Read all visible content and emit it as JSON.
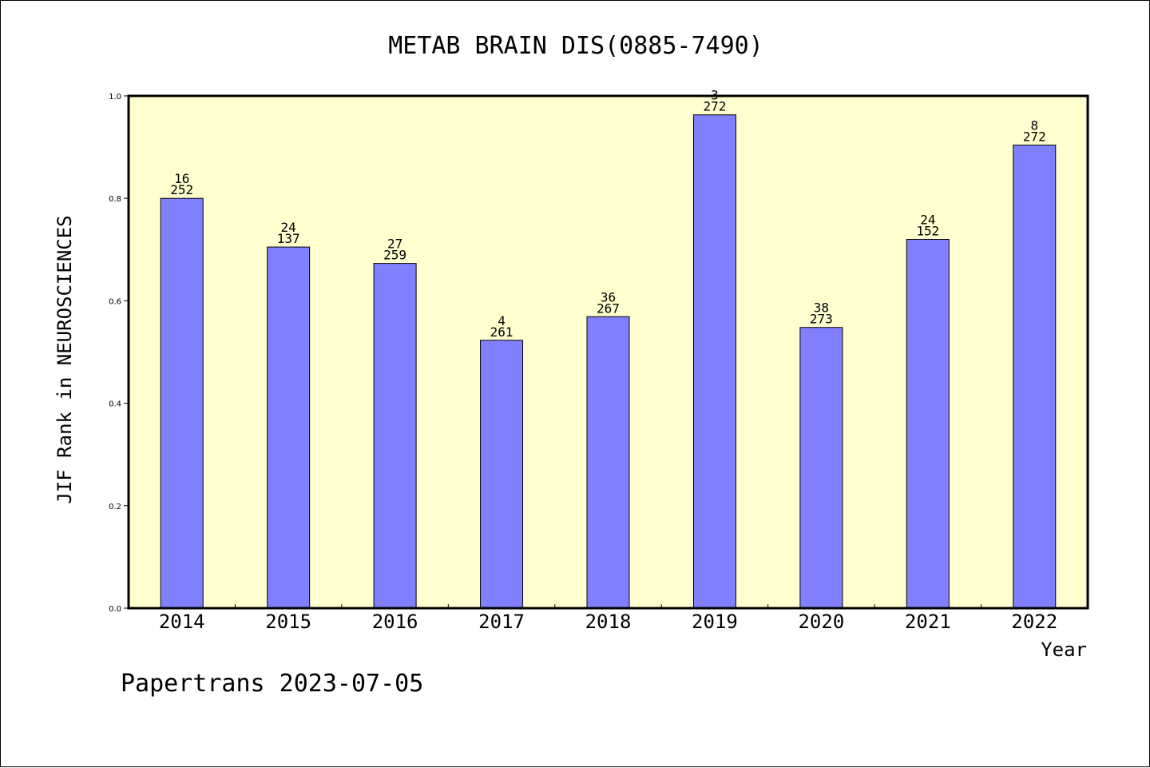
{
  "chart_data": {
    "type": "bar",
    "title": "METAB BRAIN DIS(0885-7490)",
    "xlabel": "Year",
    "ylabel": "JIF Rank in NEUROSCIENCES",
    "ylim": [
      0,
      1.0
    ],
    "yticks": [
      "0.0",
      "0.2",
      "0.4",
      "0.6",
      "0.8",
      "1.0"
    ],
    "grid": false,
    "colors": {
      "bar": "#8080ff",
      "plot_bg": "#ffffd0",
      "axis": "#000000"
    },
    "categories": [
      "2014",
      "2015",
      "2016",
      "2017",
      "2018",
      "2019",
      "2020",
      "2021",
      "2022"
    ],
    "values": [
      0.8,
      0.705,
      0.673,
      0.523,
      0.569,
      0.963,
      0.548,
      0.72,
      0.904
    ],
    "labels": [
      [
        "16",
        "252"
      ],
      [
        "24",
        "137"
      ],
      [
        "27",
        "259"
      ],
      [
        "4",
        "261"
      ],
      [
        "36",
        "267"
      ],
      [
        "3",
        "272"
      ],
      [
        "38",
        "273"
      ],
      [
        "24",
        "152"
      ],
      [
        "8",
        "272"
      ]
    ]
  },
  "footer": "Papertrans 2023-07-05"
}
